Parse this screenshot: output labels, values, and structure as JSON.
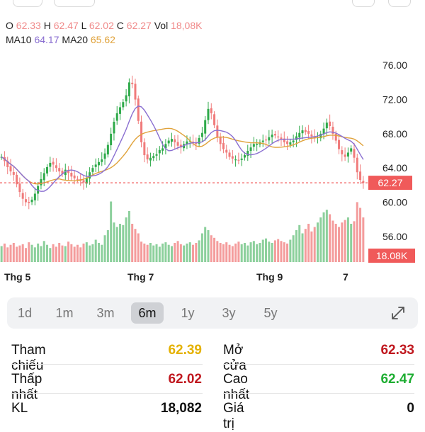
{
  "ohlc": {
    "open_label": "O",
    "open": "62.33",
    "high_label": "H",
    "high": "62.47",
    "low_label": "L",
    "low": "62.02",
    "close_label": "C",
    "close": "62.27",
    "vol_label": "Vol",
    "vol": "18,08K"
  },
  "ma": {
    "ma10_label": "MA10",
    "ma10": "64.17",
    "ma20_label": "MA20",
    "ma20": "65.62"
  },
  "colors": {
    "up": "#2eaa4a",
    "down": "#f07b7b",
    "ma10": "#8a6fd1",
    "ma20": "#e0a23a",
    "price_line": "#f05a5a"
  },
  "chart_data": {
    "type": "candlestick",
    "y_ticks": [
      "76.00",
      "72.00",
      "68.00",
      "64.00",
      "60.00",
      "56.00"
    ],
    "ylim": [
      54.5,
      78.5
    ],
    "x_tick_labels": [
      "Thg 5",
      "Thg 7",
      "Thg 9",
      "7"
    ],
    "current_price_label": "62.27",
    "current_price": 62.27,
    "volume_label": "18.08K",
    "grid": false,
    "closes": [
      65.3,
      64.8,
      64.1,
      63.6,
      63.2,
      62.1,
      61.2,
      60.4,
      60.0,
      59.9,
      60.3,
      61.0,
      61.9,
      62.7,
      63.4,
      64.1,
      64.6,
      64.4,
      64.0,
      63.6,
      63.3,
      63.8,
      63.4,
      63.0,
      62.8,
      62.7,
      62.5,
      62.3,
      62.8,
      63.5,
      64.0,
      64.4,
      64.7,
      65.0,
      65.7,
      66.7,
      68.0,
      69.4,
      70.4,
      71.1,
      71.7,
      72.5,
      74.0,
      73.8,
      72.0,
      69.5,
      67.0,
      65.5,
      65.0,
      65.2,
      65.4,
      65.6,
      66.1,
      66.3,
      66.8,
      67.2,
      67.4,
      67.0,
      66.6,
      66.4,
      66.8,
      67.1,
      67.2,
      67.0,
      66.8,
      67.5,
      68.1,
      69.6,
      70.9,
      70.4,
      69.0,
      67.6,
      66.8,
      66.2,
      65.8,
      65.3,
      65.1,
      65.0,
      64.9,
      65.1,
      65.5,
      66.0,
      66.4,
      66.8,
      66.8,
      67.0,
      67.2,
      67.3,
      67.6,
      67.9,
      67.8,
      67.6,
      67.4,
      67.0,
      66.8,
      67.0,
      67.2,
      67.7,
      68.1,
      68.4,
      68.2,
      68.0,
      67.7,
      67.5,
      67.6,
      68.0,
      68.6,
      69.3,
      68.9,
      68.0,
      67.2,
      66.2,
      65.6,
      65.3,
      65.8,
      66.3,
      65.2,
      63.5,
      62.6,
      62.27
    ],
    "volumes": [
      0.25,
      0.29,
      0.23,
      0.27,
      0.3,
      0.24,
      0.26,
      0.28,
      0.22,
      0.31,
      0.27,
      0.23,
      0.29,
      0.25,
      0.33,
      0.27,
      0.22,
      0.28,
      0.24,
      0.3,
      0.26,
      0.25,
      0.32,
      0.28,
      0.24,
      0.27,
      0.23,
      0.29,
      0.31,
      0.26,
      0.28,
      0.35,
      0.3,
      0.27,
      0.42,
      0.5,
      0.95,
      0.62,
      0.55,
      0.6,
      0.58,
      0.7,
      0.8,
      0.6,
      0.52,
      0.45,
      0.32,
      0.29,
      0.27,
      0.3,
      0.26,
      0.28,
      0.24,
      0.29,
      0.31,
      0.27,
      0.25,
      0.3,
      0.33,
      0.28,
      0.26,
      0.29,
      0.31,
      0.27,
      0.3,
      0.34,
      0.45,
      0.55,
      0.5,
      0.42,
      0.38,
      0.33,
      0.3,
      0.28,
      0.31,
      0.27,
      0.25,
      0.29,
      0.32,
      0.28,
      0.3,
      0.26,
      0.31,
      0.33,
      0.28,
      0.3,
      0.35,
      0.37,
      0.32,
      0.3,
      0.34,
      0.36,
      0.33,
      0.31,
      0.29,
      0.35,
      0.42,
      0.5,
      0.58,
      0.45,
      0.52,
      0.6,
      0.48,
      0.55,
      0.62,
      0.7,
      0.78,
      0.82,
      0.75,
      0.65,
      0.6,
      0.55,
      0.62,
      0.66,
      0.7,
      0.6,
      0.64,
      0.94,
      0.85,
      0.7
    ]
  },
  "period_tabs": [
    "1d",
    "1m",
    "3m",
    "6m",
    "1y",
    "3y",
    "5y"
  ],
  "active_tab": "6m",
  "stats": {
    "ref_label": "Tham chiếu",
    "ref_value": "62.39",
    "open_label": "Mở cửa",
    "open_value": "62.33",
    "low_label": "Thấp nhất",
    "low_value": "62.02",
    "high_label": "Cao nhất",
    "high_value": "62.47",
    "kl_label": "KL",
    "kl_value": "18,082",
    "gt_label": "Giá trị",
    "gt_value": "0"
  }
}
